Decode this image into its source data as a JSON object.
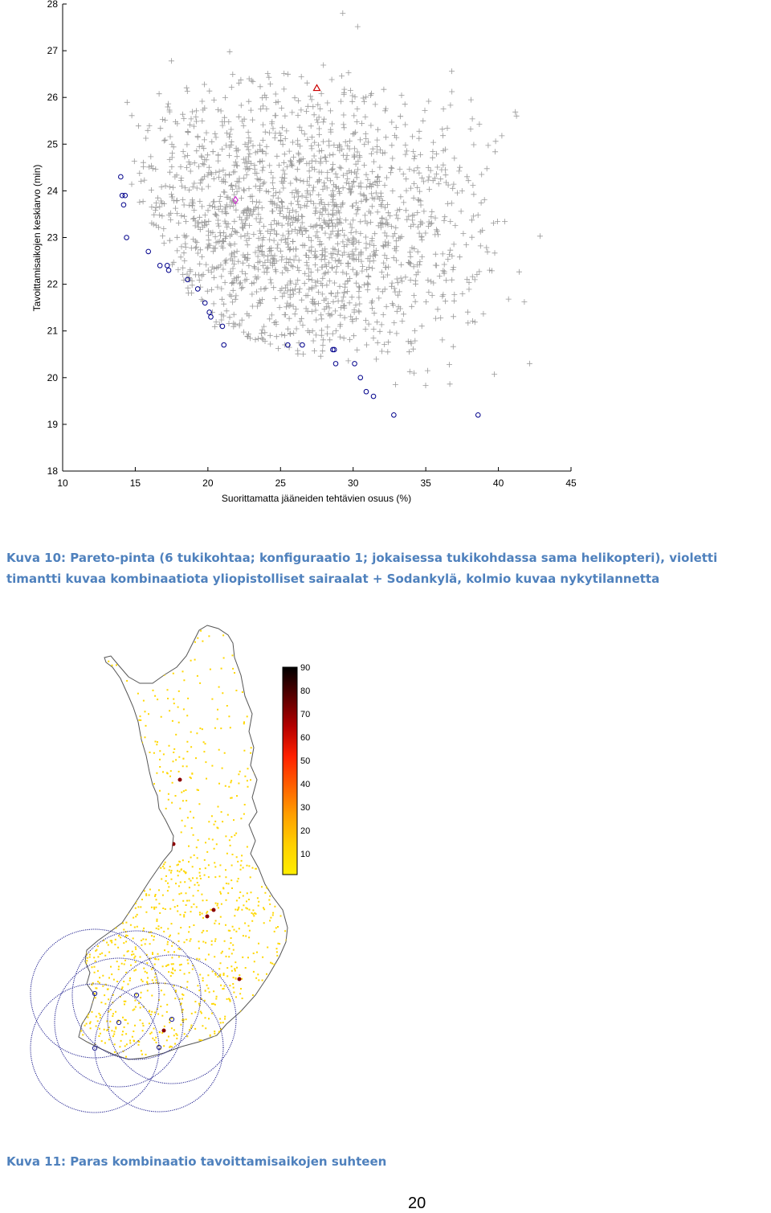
{
  "figure1": {
    "chart_data": {
      "type": "scatter",
      "xlabel": "Suorittamatta jääneiden tehtävien osuus (%)",
      "ylabel": "Tavoittamisaikojen keskiarvo (min)",
      "xlim": [
        10,
        45
      ],
      "ylim": [
        18,
        28
      ],
      "xticks": [
        10,
        15,
        20,
        25,
        30,
        35,
        40,
        45
      ],
      "yticks": [
        18,
        19,
        20,
        21,
        22,
        23,
        24,
        25,
        26,
        27,
        28
      ],
      "grid": false,
      "series": [
        {
          "marker": "circle",
          "color": "#00008b",
          "x": [
            14.0,
            14.1,
            14.3,
            14.2,
            14.4,
            15.9,
            16.7,
            17.2,
            17.3,
            18.6,
            19.3,
            19.8,
            20.1,
            20.2,
            21.0,
            21.1,
            25.5,
            26.5,
            28.7,
            28.6,
            28.8,
            30.1,
            30.5,
            30.9,
            31.4,
            32.8,
            38.6
          ],
          "y": [
            24.3,
            23.9,
            23.9,
            23.7,
            23.0,
            22.7,
            22.4,
            22.4,
            22.3,
            22.1,
            21.9,
            21.6,
            21.4,
            21.3,
            21.1,
            20.7,
            20.7,
            20.7,
            20.6,
            20.6,
            20.3,
            20.3,
            20.0,
            19.7,
            19.6,
            19.2,
            19.2
          ]
        },
        {
          "marker": "diamond",
          "color": "#cc33cc",
          "x": [
            21.9
          ],
          "y": [
            23.8
          ]
        },
        {
          "marker": "triangle",
          "color": "#cc0000",
          "x": [
            27.5
          ],
          "y": [
            26.2
          ]
        },
        {
          "marker": "plus",
          "color": "#999999",
          "note_only_text": ""
        }
      ]
    }
  },
  "caption1": "Kuva 10: Pareto-pinta (6 tukikohtaa; konfiguraatio 1; jokaisessa tukikohdassa sama helikopteri), violetti timantti kuvaa kombinaatiota yliopistolliset sairaalat + Sodankylä, kolmio kuvaa nykytilannetta",
  "figure2": {
    "colorbar": {
      "ticks": [
        "90",
        "80",
        "70",
        "60",
        "50",
        "40",
        "30",
        "20",
        "10"
      ],
      "colors": [
        "#000000",
        "#5a0000",
        "#b40000",
        "#ff2000",
        "#ff6000",
        "#ffa000",
        "#ffd000",
        "#ffee00"
      ]
    },
    "map_color": "#ffd700",
    "circle_color": "#1a1a8c"
  },
  "caption2": "Kuva 11: Paras kombinaatio tavoittamisaikojen suhteen",
  "page_number": "20"
}
